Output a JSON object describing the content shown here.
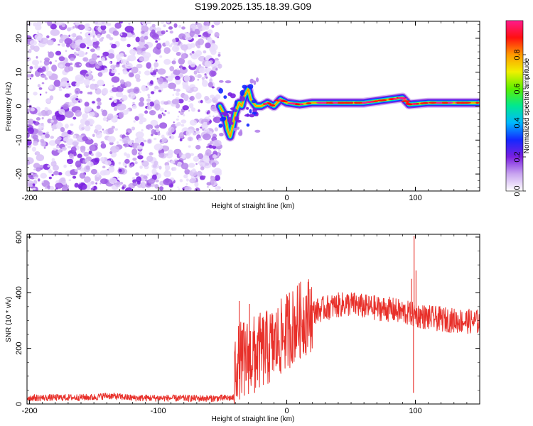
{
  "title": "S199.2025.135.18.39.G09",
  "chart_data": [
    {
      "type": "heatmap",
      "xlabel": "Height of straight line (km)",
      "ylabel": "Frequency (Hz)",
      "xlim": [
        -202,
        150
      ],
      "ylim": [
        -25,
        25
      ],
      "xticks": [
        -200,
        -100,
        0,
        100
      ],
      "yticks": [
        -20,
        -10,
        0,
        10,
        20
      ],
      "colorbar": {
        "label": "Normalized spectral amplitude",
        "range": [
          0,
          1
        ],
        "ticks": [
          0.0,
          0.2,
          0.4,
          0.6,
          0.8
        ],
        "tick_labels": [
          "0.0",
          "0.2",
          "0.4",
          "0.6",
          "0.8"
        ],
        "colors": [
          "#ffffff",
          "#c9a5f0",
          "#7a1fe0",
          "#1428ff",
          "#00b8ff",
          "#00e890",
          "#5cf000",
          "#f0f000",
          "#ff9a00",
          "#ff1010",
          "#ff1a8c"
        ]
      },
      "noise_region_x": [
        -202,
        -52
      ],
      "signal_path": [
        {
          "x": -52,
          "y": 0
        },
        {
          "x": -48,
          "y": -3
        },
        {
          "x": -46,
          "y": -7
        },
        {
          "x": -44,
          "y": -9
        },
        {
          "x": -42,
          "y": -6
        },
        {
          "x": -40,
          "y": -2
        },
        {
          "x": -37,
          "y": 1
        },
        {
          "x": -35,
          "y": 0
        },
        {
          "x": -33,
          "y": 3
        },
        {
          "x": -30,
          "y": 5
        },
        {
          "x": -28,
          "y": 2
        },
        {
          "x": -24,
          "y": 0
        },
        {
          "x": -20,
          "y": 0
        },
        {
          "x": -15,
          "y": 1
        },
        {
          "x": -10,
          "y": 0
        },
        {
          "x": -5,
          "y": 2
        },
        {
          "x": 0,
          "y": 1
        },
        {
          "x": 10,
          "y": 0.5
        },
        {
          "x": 20,
          "y": 1
        },
        {
          "x": 40,
          "y": 1
        },
        {
          "x": 60,
          "y": 1
        },
        {
          "x": 80,
          "y": 2
        },
        {
          "x": 90,
          "y": 2.5
        },
        {
          "x": 95,
          "y": 0.5
        },
        {
          "x": 110,
          "y": 1
        },
        {
          "x": 130,
          "y": 1
        },
        {
          "x": 150,
          "y": 1
        }
      ]
    },
    {
      "type": "line",
      "xlabel": "Height of straight line (km)",
      "ylabel": "SNR (10 * v/v)",
      "xlim": [
        -202,
        150
      ],
      "ylim": [
        0,
        610
      ],
      "xticks": [
        -200,
        -100,
        0,
        100
      ],
      "yticks": [
        0,
        200,
        400,
        600
      ],
      "series": [
        {
          "color": "#e8302a",
          "trend": [
            {
              "x": -202,
              "y": 22
            },
            {
              "x": -150,
              "y": 24
            },
            {
              "x": -140,
              "y": 30
            },
            {
              "x": -120,
              "y": 22
            },
            {
              "x": -60,
              "y": 20
            },
            {
              "x": -41,
              "y": 22
            },
            {
              "x": -40,
              "y": 150
            },
            {
              "x": -30,
              "y": 170
            },
            {
              "x": -20,
              "y": 190
            },
            {
              "x": -10,
              "y": 210
            },
            {
              "x": 0,
              "y": 260
            },
            {
              "x": 10,
              "y": 300
            },
            {
              "x": 20,
              "y": 330
            },
            {
              "x": 30,
              "y": 345
            },
            {
              "x": 40,
              "y": 355
            },
            {
              "x": 50,
              "y": 360
            },
            {
              "x": 60,
              "y": 350
            },
            {
              "x": 80,
              "y": 340
            },
            {
              "x": 100,
              "y": 320
            },
            {
              "x": 110,
              "y": 310
            },
            {
              "x": 130,
              "y": 300
            },
            {
              "x": 150,
              "y": 295
            }
          ],
          "spikes": [
            {
              "x": 99,
              "y": 605
            },
            {
              "x": 98.5,
              "y": 40
            },
            {
              "x": 97,
              "y": 450
            },
            {
              "x": 100.5,
              "y": 480
            },
            {
              "x": -37,
              "y": 370
            },
            {
              "x": -33,
              "y": 30
            },
            {
              "x": -29,
              "y": 360
            },
            {
              "x": -25,
              "y": 40
            },
            {
              "x": 2,
              "y": 400
            },
            {
              "x": 47,
              "y": 395
            }
          ]
        }
      ]
    }
  ]
}
